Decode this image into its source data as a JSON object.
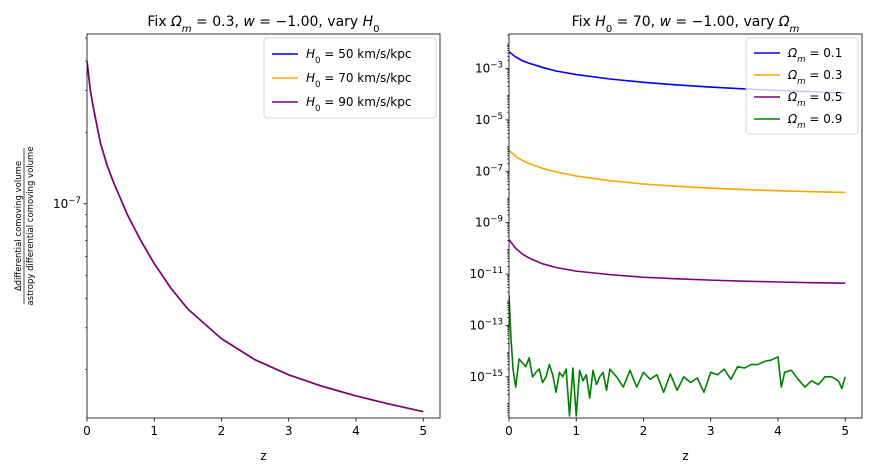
{
  "figure": {
    "charts": [
      {
        "title_pre": "Fix ",
        "title_expr": [
          {
            "t": "Ω",
            "style": "italic"
          },
          {
            "t": "m",
            "sub": true,
            "style": "italic"
          },
          {
            "t": " = 0.3, "
          },
          {
            "t": "w",
            "style": "italic"
          },
          {
            "t": " = −1.00, vary "
          },
          {
            "t": "H",
            "style": "italic"
          },
          {
            "t": "0",
            "sub": true
          }
        ],
        "xlabel": "z",
        "ylabel_num": "Δdifferential comoving volume",
        "ylabel_den": "astropy differential comoving volume"
      },
      {
        "title_expr": [
          {
            "t": "Fix "
          },
          {
            "t": "H",
            "style": "italic"
          },
          {
            "t": "0",
            "sub": true
          },
          {
            "t": " = 70, "
          },
          {
            "t": "w",
            "style": "italic"
          },
          {
            "t": " = −1.00, vary "
          },
          {
            "t": "Ω",
            "style": "italic"
          },
          {
            "t": "m",
            "sub": true,
            "style": "italic"
          }
        ],
        "xlabel": "z"
      }
    ]
  },
  "chart_data": [
    {
      "type": "line",
      "title": "Fix Ωm = 0.3, w = −1.00, vary H0",
      "xlabel": "z",
      "ylabel": "Δdifferential comoving volume / astropy differential comoving volume",
      "xlim": [
        0,
        5.25
      ],
      "ylim": [
        1.25e-08,
        5.2e-07
      ],
      "yscale": "log",
      "xticks": [
        "0",
        "1",
        "2",
        "3",
        "4",
        "5"
      ],
      "yticks": [
        {
          "value": 1e-07,
          "label": "10^-7"
        }
      ],
      "legend": "top-right",
      "grid": false,
      "series": [
        {
          "name": "H0 = 50 km/s/kpc",
          "color": "#0000ff",
          "x": [
            0,
            0.05,
            0.1,
            0.2,
            0.3,
            0.4,
            0.5,
            0.6,
            0.8,
            1.0,
            1.25,
            1.5,
            2.0,
            2.5,
            3.0,
            3.5,
            4.0,
            4.5,
            5.0
          ],
          "y": [
            4e-07,
            3e-07,
            2.5e-07,
            1.8e-07,
            1.45e-07,
            1.22e-07,
            1.05e-07,
            9e-08,
            7e-08,
            5.6e-08,
            4.4e-08,
            3.6e-08,
            2.7e-08,
            2.2e-08,
            1.9e-08,
            1.7e-08,
            1.55e-08,
            1.43e-08,
            1.33e-08
          ]
        },
        {
          "name": "H0 = 70 km/s/kpc",
          "color": "#ffa500",
          "x": [
            0,
            0.05,
            0.1,
            0.2,
            0.3,
            0.4,
            0.5,
            0.6,
            0.8,
            1.0,
            1.25,
            1.5,
            2.0,
            2.5,
            3.0,
            3.5,
            4.0,
            4.5,
            5.0
          ],
          "y": [
            4e-07,
            3e-07,
            2.5e-07,
            1.8e-07,
            1.45e-07,
            1.22e-07,
            1.05e-07,
            9e-08,
            7e-08,
            5.6e-08,
            4.4e-08,
            3.6e-08,
            2.7e-08,
            2.2e-08,
            1.9e-08,
            1.7e-08,
            1.55e-08,
            1.43e-08,
            1.33e-08
          ]
        },
        {
          "name": "H0 = 90 km/s/kpc",
          "color": "#800080",
          "x": [
            0,
            0.05,
            0.1,
            0.2,
            0.3,
            0.4,
            0.5,
            0.6,
            0.8,
            1.0,
            1.25,
            1.5,
            2.0,
            2.5,
            3.0,
            3.5,
            4.0,
            4.5,
            5.0
          ],
          "y": [
            4e-07,
            3e-07,
            2.5e-07,
            1.8e-07,
            1.45e-07,
            1.22e-07,
            1.05e-07,
            9e-08,
            7e-08,
            5.6e-08,
            4.4e-08,
            3.6e-08,
            2.7e-08,
            2.2e-08,
            1.9e-08,
            1.7e-08,
            1.55e-08,
            1.43e-08,
            1.33e-08
          ]
        }
      ]
    },
    {
      "type": "line",
      "title": "Fix H0 = 70, w = −1.00, vary Ωm",
      "xlabel": "z",
      "ylabel": "",
      "xlim": [
        0,
        5.25
      ],
      "ylim": [
        2.5e-17,
        0.022
      ],
      "yscale": "log",
      "xticks": [
        "0",
        "1",
        "2",
        "3",
        "4",
        "5"
      ],
      "yticks": [
        {
          "value": 0.001,
          "label": "10^-3"
        },
        {
          "value": 1e-05,
          "label": "10^-5"
        },
        {
          "value": 1e-07,
          "label": "10^-7"
        },
        {
          "value": 1e-09,
          "label": "10^-9"
        },
        {
          "value": 1e-11,
          "label": "10^-11"
        },
        {
          "value": 1e-13,
          "label": "10^-13"
        },
        {
          "value": 1e-15,
          "label": "10^-15"
        }
      ],
      "legend": "top-right",
      "grid": false,
      "series": [
        {
          "name": "Ωm = 0.1",
          "color": "#0000ff",
          "x": [
            0,
            0.1,
            0.2,
            0.3,
            0.5,
            0.7,
            1.0,
            1.5,
            2.0,
            2.5,
            3.0,
            3.5,
            4.0,
            4.5,
            5.0
          ],
          "y": [
            0.0045,
            0.0028,
            0.002,
            0.0016,
            0.0011,
            0.0008,
            0.00058,
            0.00039,
            0.00029,
            0.00023,
            0.00019,
            0.00016,
            0.00014,
            0.000125,
            0.00011
          ]
        },
        {
          "name": "Ωm = 0.3",
          "color": "#ffa500",
          "x": [
            0,
            0.1,
            0.2,
            0.3,
            0.5,
            0.7,
            1.0,
            1.5,
            2.0,
            2.5,
            3.0,
            3.5,
            4.0,
            4.5,
            5.0
          ],
          "y": [
            6.5e-07,
            3.8e-07,
            2.6e-07,
            2e-07,
            1.3e-07,
            9.5e-08,
            6.5e-08,
            4.3e-08,
            3.2e-08,
            2.6e-08,
            2.2e-08,
            1.95e-08,
            1.75e-08,
            1.6e-08,
            1.5e-08
          ]
        },
        {
          "name": "Ωm = 0.5",
          "color": "#800080",
          "x": [
            0,
            0.1,
            0.2,
            0.3,
            0.5,
            0.7,
            1.0,
            1.5,
            2.0,
            2.5,
            3.0,
            3.5,
            4.0,
            4.5,
            5.0
          ],
          "y": [
            2.2e-10,
            1e-10,
            6e-11,
            4.2e-11,
            2.5e-11,
            1.8e-11,
            1.3e-11,
            9.5e-12,
            7.5e-12,
            6.5e-12,
            5.8e-12,
            5.3e-12,
            4.9e-12,
            4.6e-12,
            4.4e-12
          ]
        },
        {
          "name": "Ωm = 0.9",
          "color": "#008000",
          "x": [
            0,
            0.03,
            0.06,
            0.1,
            0.15,
            0.2,
            0.25,
            0.3,
            0.35,
            0.4,
            0.45,
            0.5,
            0.55,
            0.6,
            0.65,
            0.7,
            0.75,
            0.8,
            0.85,
            0.9,
            0.95,
            1.0,
            1.05,
            1.1,
            1.15,
            1.2,
            1.25,
            1.3,
            1.35,
            1.4,
            1.45,
            1.5,
            1.6,
            1.7,
            1.8,
            1.9,
            2.0,
            2.1,
            2.2,
            2.3,
            2.4,
            2.5,
            2.6,
            2.7,
            2.8,
            2.9,
            3.0,
            3.1,
            3.2,
            3.3,
            3.4,
            3.5,
            3.6,
            3.7,
            3.8,
            3.9,
            4.0,
            4.05,
            4.1,
            4.2,
            4.3,
            4.4,
            4.5,
            4.6,
            4.7,
            4.8,
            4.9,
            4.95,
            5.0
          ],
          "y": [
            1.5e-12,
            3e-14,
            2e-15,
            4e-16,
            5e-15,
            3.5e-15,
            2.5e-15,
            5.5e-15,
            1e-15,
            1.5e-15,
            2e-15,
            6e-16,
            1e-15,
            3e-15,
            1.2e-15,
            2.5e-16,
            1.5e-15,
            1e-15,
            2e-15,
            3e-17,
            2.2e-15,
            3e-17,
            1.8e-15,
            7e-16,
            1.2e-15,
            1.5e-16,
            1.8e-15,
            5e-16,
            1e-15,
            1.5e-15,
            3e-16,
            2e-15,
            1e-15,
            4e-16,
            1.8e-15,
            4e-16,
            1.5e-15,
            8e-16,
            1.2e-15,
            2.5e-16,
            1.3e-15,
            3e-16,
            1e-15,
            6e-16,
            9e-16,
            2.5e-16,
            1.5e-15,
            1.2e-15,
            2e-15,
            8e-16,
            2.5e-15,
            2.2e-15,
            3e-15,
            3e-15,
            4e-15,
            4.5e-15,
            6e-15,
            4e-16,
            1.5e-15,
            1.8e-15,
            8e-16,
            4e-16,
            7e-16,
            5e-16,
            1e-15,
            1e-15,
            7e-16,
            3.5e-16,
            1e-15
          ]
        }
      ]
    }
  ]
}
